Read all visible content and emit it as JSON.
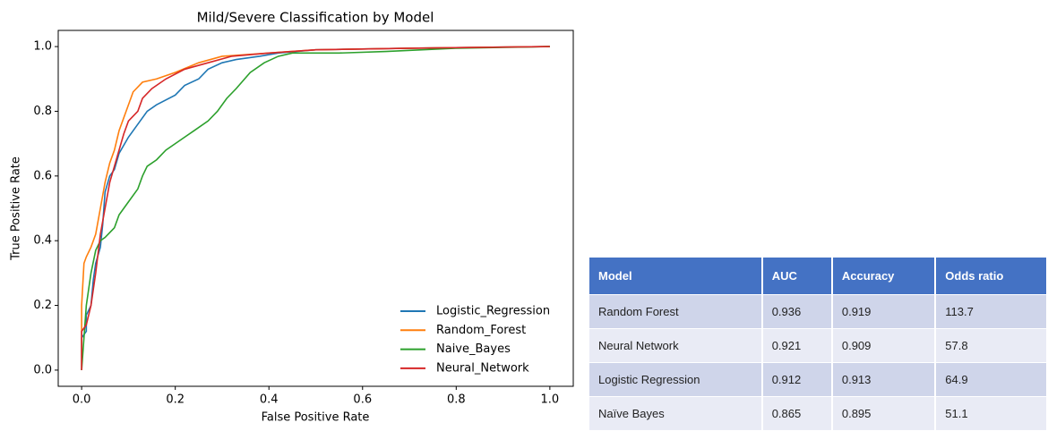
{
  "chart_data": {
    "type": "line",
    "title": "Mild/Severe Classification by Model",
    "xlabel": "False Positive Rate",
    "ylabel": "True Positive Rate",
    "xlim": [
      -0.05,
      1.05
    ],
    "ylim": [
      -0.05,
      1.05
    ],
    "xticks": [
      {
        "value": 0,
        "label": "0.0"
      },
      0.2,
      0.4,
      0.6,
      0.8,
      {
        "value": 1,
        "label": "1.0"
      }
    ],
    "yticks": [
      {
        "value": 0,
        "label": "0.0"
      },
      0.2,
      0.4,
      0.6,
      0.8,
      {
        "value": 1,
        "label": "1.0"
      }
    ],
    "grid": false,
    "legend": "lower right",
    "series": [
      {
        "name": "Logistic_Regression",
        "color": "#1f77b4",
        "x": [
          0,
          0,
          0.01,
          0.01,
          0.02,
          0.025,
          0.03,
          0.04,
          0.045,
          0.05,
          0.06,
          0.07,
          0.08,
          0.1,
          0.12,
          0.14,
          0.16,
          0.2,
          0.22,
          0.25,
          0.27,
          0.3,
          0.33,
          0.38,
          0.42,
          0.5,
          0.7,
          1
        ],
        "values": [
          0,
          0.1,
          0.12,
          0.17,
          0.2,
          0.28,
          0.33,
          0.38,
          0.45,
          0.55,
          0.6,
          0.62,
          0.67,
          0.72,
          0.76,
          0.8,
          0.82,
          0.85,
          0.88,
          0.9,
          0.93,
          0.95,
          0.96,
          0.97,
          0.98,
          0.99,
          0.995,
          1
        ]
      },
      {
        "name": "Random_Forest",
        "color": "#ff7f0e",
        "x": [
          0,
          0,
          0.005,
          0.01,
          0.02,
          0.03,
          0.04,
          0.05,
          0.06,
          0.07,
          0.08,
          0.09,
          0.1,
          0.11,
          0.13,
          0.16,
          0.2,
          0.25,
          0.3,
          0.4,
          0.5,
          0.7,
          1
        ],
        "values": [
          0,
          0.2,
          0.33,
          0.35,
          0.38,
          0.42,
          0.5,
          0.58,
          0.64,
          0.68,
          0.74,
          0.78,
          0.82,
          0.86,
          0.89,
          0.9,
          0.92,
          0.95,
          0.97,
          0.98,
          0.99,
          0.995,
          1
        ]
      },
      {
        "name": "Naive_Bayes",
        "color": "#2ca02c",
        "x": [
          0,
          0.005,
          0.01,
          0.02,
          0.03,
          0.04,
          0.05,
          0.07,
          0.08,
          0.09,
          0.1,
          0.12,
          0.13,
          0.14,
          0.16,
          0.18,
          0.2,
          0.22,
          0.24,
          0.27,
          0.29,
          0.31,
          0.33,
          0.36,
          0.39,
          0.42,
          0.45,
          0.55,
          0.65,
          0.8,
          1
        ],
        "values": [
          0,
          0.1,
          0.2,
          0.3,
          0.37,
          0.4,
          0.41,
          0.44,
          0.48,
          0.5,
          0.52,
          0.56,
          0.6,
          0.63,
          0.65,
          0.68,
          0.7,
          0.72,
          0.74,
          0.77,
          0.8,
          0.84,
          0.87,
          0.92,
          0.95,
          0.97,
          0.98,
          0.98,
          0.985,
          0.995,
          1
        ]
      },
      {
        "name": "Neural_Network",
        "color": "#d62728",
        "x": [
          0,
          0,
          0.01,
          0.02,
          0.03,
          0.04,
          0.05,
          0.06,
          0.07,
          0.08,
          0.09,
          0.1,
          0.12,
          0.13,
          0.15,
          0.18,
          0.22,
          0.27,
          0.32,
          0.4,
          0.5,
          0.7,
          1
        ],
        "values": [
          0,
          0.12,
          0.14,
          0.2,
          0.3,
          0.42,
          0.5,
          0.58,
          0.63,
          0.68,
          0.73,
          0.77,
          0.8,
          0.84,
          0.87,
          0.9,
          0.93,
          0.95,
          0.97,
          0.98,
          0.99,
          0.995,
          1
        ]
      }
    ]
  },
  "table": {
    "header": [
      "Model",
      "AUC",
      "Accuracy",
      "Odds ratio"
    ],
    "rows": [
      [
        "Random Forest",
        0.936,
        0.919,
        113.7
      ],
      [
        "Neural Network",
        0.921,
        0.909,
        57.8
      ],
      [
        "Logistic Regression",
        0.912,
        0.913,
        64.9
      ],
      [
        "Naïve Bayes",
        0.865,
        0.895,
        51.1
      ]
    ]
  }
}
